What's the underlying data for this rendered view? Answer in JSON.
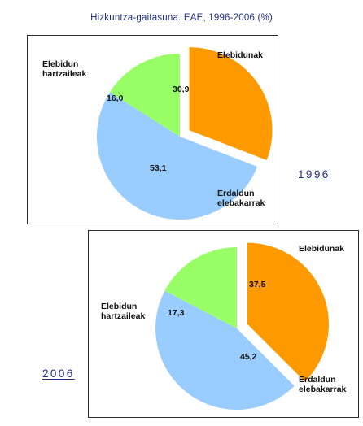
{
  "title": "Hizkuntza-gaitasuna. EAE, 1996-2006 (%)",
  "chart_data": [
    {
      "type": "pie",
      "year_label": "1996",
      "categories": [
        "Elebidunak",
        "Erdaldun elebakarrak",
        "Elebidun hartzaileak"
      ],
      "values": [
        30.9,
        53.1,
        16.0
      ],
      "value_labels": [
        "30,9",
        "53,1",
        "16,0"
      ],
      "category_lines": [
        [
          "Elebidunak"
        ],
        [
          "Erdaldun",
          "elebakarrak"
        ],
        [
          "Elebidun",
          "hartzaileak"
        ]
      ],
      "colors": [
        "#ff9900",
        "#99ccff",
        "#99ff66"
      ],
      "exploded": "Elebidunak"
    },
    {
      "type": "pie",
      "year_label": "2006",
      "categories": [
        "Elebidunak",
        "Erdaldun elebakarrak",
        "Elebidun hartzaileak"
      ],
      "values": [
        37.5,
        45.2,
        17.3
      ],
      "value_labels": [
        "37,5",
        "45,2",
        "17,3"
      ],
      "category_lines": [
        [
          "Elebidunak"
        ],
        [
          "Erdaldun",
          "elebakarrak"
        ],
        [
          "Elebidun",
          "hartzaileak"
        ]
      ],
      "colors": [
        "#ff9900",
        "#99ccff",
        "#99ff66"
      ],
      "exploded": "Elebidunak"
    }
  ]
}
